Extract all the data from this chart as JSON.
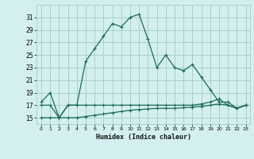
{
  "xlabel": "Humidex (Indice chaleur)",
  "background_color": "#d4efef",
  "grid_color": "#a8d0d0",
  "line_color": "#1a6b5a",
  "x_values": [
    0,
    1,
    2,
    3,
    4,
    5,
    6,
    7,
    8,
    9,
    10,
    11,
    12,
    13,
    14,
    15,
    16,
    17,
    18,
    19,
    20,
    21,
    22,
    23
  ],
  "ylim": [
    14.0,
    33.0
  ],
  "yticks": [
    15,
    17,
    19,
    21,
    23,
    25,
    27,
    29,
    31
  ],
  "series1": [
    17.5,
    19.0,
    15.0,
    17.0,
    17.0,
    24.0,
    26.0,
    28.0,
    30.0,
    29.5,
    31.0,
    31.5,
    27.5,
    23.0,
    25.0,
    23.0,
    22.5,
    23.5,
    21.5,
    19.5,
    17.5,
    17.5,
    16.5,
    17.0
  ],
  "series2": [
    15.0,
    15.0,
    15.0,
    15.0,
    15.0,
    15.2,
    15.4,
    15.6,
    15.8,
    16.0,
    16.2,
    16.3,
    16.4,
    16.5,
    16.5,
    16.5,
    16.6,
    16.7,
    16.8,
    17.0,
    17.2,
    17.0,
    16.5,
    17.0
  ],
  "series3": [
    17.0,
    17.0,
    15.0,
    17.0,
    17.0,
    17.0,
    17.0,
    17.0,
    17.0,
    17.0,
    17.0,
    17.0,
    17.0,
    17.0,
    17.0,
    17.0,
    17.0,
    17.0,
    17.2,
    17.5,
    18.0,
    17.0,
    16.5,
    17.0
  ]
}
